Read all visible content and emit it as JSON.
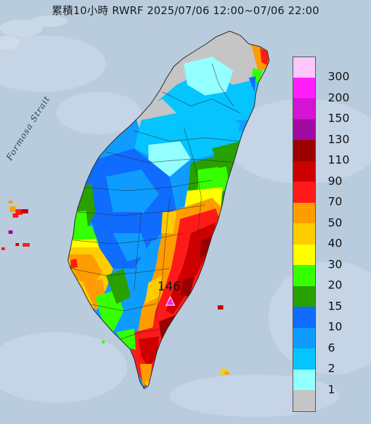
{
  "title": "累積10小時 RWRF 2025/07/06 12:00~07/06 22:00",
  "sea_label": "Formosa Strait",
  "peak": {
    "value": "146"
  },
  "legend": [
    {
      "label": "300",
      "color": "#ffc6fb"
    },
    {
      "label": "200",
      "color": "#ff1cff"
    },
    {
      "label": "150",
      "color": "#d314d3"
    },
    {
      "label": "130",
      "color": "#a00aa0"
    },
    {
      "label": "110",
      "color": "#9b0000"
    },
    {
      "label": "90",
      "color": "#cc0000"
    },
    {
      "label": "70",
      "color": "#ff1a1a"
    },
    {
      "label": "50",
      "color": "#ff9c00"
    },
    {
      "label": "40",
      "color": "#ffcc00"
    },
    {
      "label": "30",
      "color": "#ffff00"
    },
    {
      "label": "20",
      "color": "#36ff00"
    },
    {
      "label": "15",
      "color": "#28a000"
    },
    {
      "label": "10",
      "color": "#0f6cff"
    },
    {
      "label": "6",
      "color": "#0e9dff"
    },
    {
      "label": "2",
      "color": "#05c4ff"
    },
    {
      "label": "1",
      "color": "#93ffff"
    },
    {
      "label": "",
      "color": "#c5c5c5"
    }
  ]
}
